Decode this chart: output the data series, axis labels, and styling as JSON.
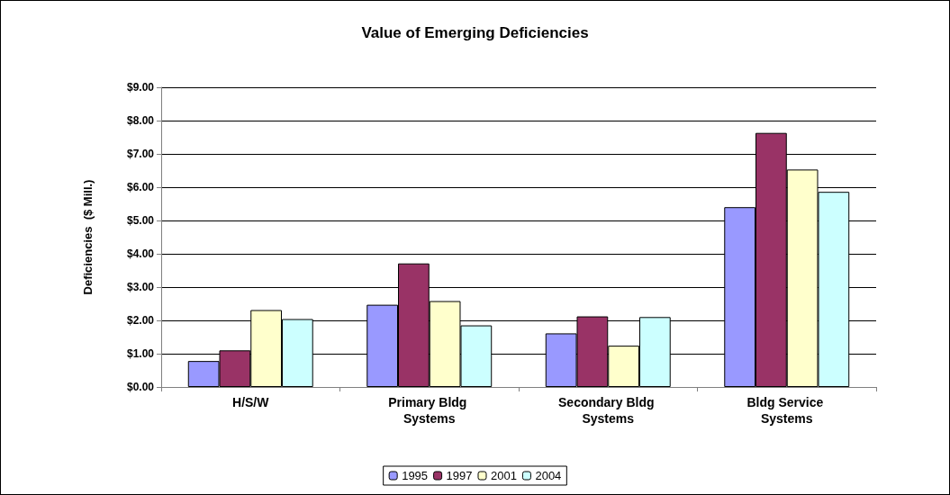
{
  "chart_data": {
    "type": "bar",
    "title": "Value of Emerging Deficiencies",
    "ylabel": "Deficiencies  ($ Mill.)",
    "categories": [
      "H/S/W",
      "Primary Bldg Systems",
      "Secondary Bldg Systems",
      "Bldg Service Systems"
    ],
    "series": [
      {
        "name": "1995",
        "color": "#9999ff",
        "values": [
          0.78,
          2.47,
          1.61,
          5.4
        ]
      },
      {
        "name": "1997",
        "color": "#993366",
        "values": [
          1.1,
          3.71,
          2.12,
          7.63
        ]
      },
      {
        "name": "2001",
        "color": "#ffffcc",
        "values": [
          2.31,
          2.58,
          1.24,
          6.53
        ]
      },
      {
        "name": "2004",
        "color": "#ccffff",
        "values": [
          2.04,
          1.85,
          2.1,
          5.86
        ]
      }
    ],
    "ylim": [
      0,
      9
    ],
    "yticks": [
      {
        "value": 0,
        "label": "$0.00"
      },
      {
        "value": 1,
        "label": "$1.00"
      },
      {
        "value": 2,
        "label": "$2.00"
      },
      {
        "value": 3,
        "label": "$3.00"
      },
      {
        "value": 4,
        "label": "$4.00"
      },
      {
        "value": 5,
        "label": "$5.00"
      },
      {
        "value": 6,
        "label": "$6.00"
      },
      {
        "value": 7,
        "label": "$7.00"
      },
      {
        "value": 8,
        "label": "$8.00"
      },
      {
        "value": 9,
        "label": "$9.00"
      }
    ],
    "grid": "y",
    "legend": "bottom"
  }
}
